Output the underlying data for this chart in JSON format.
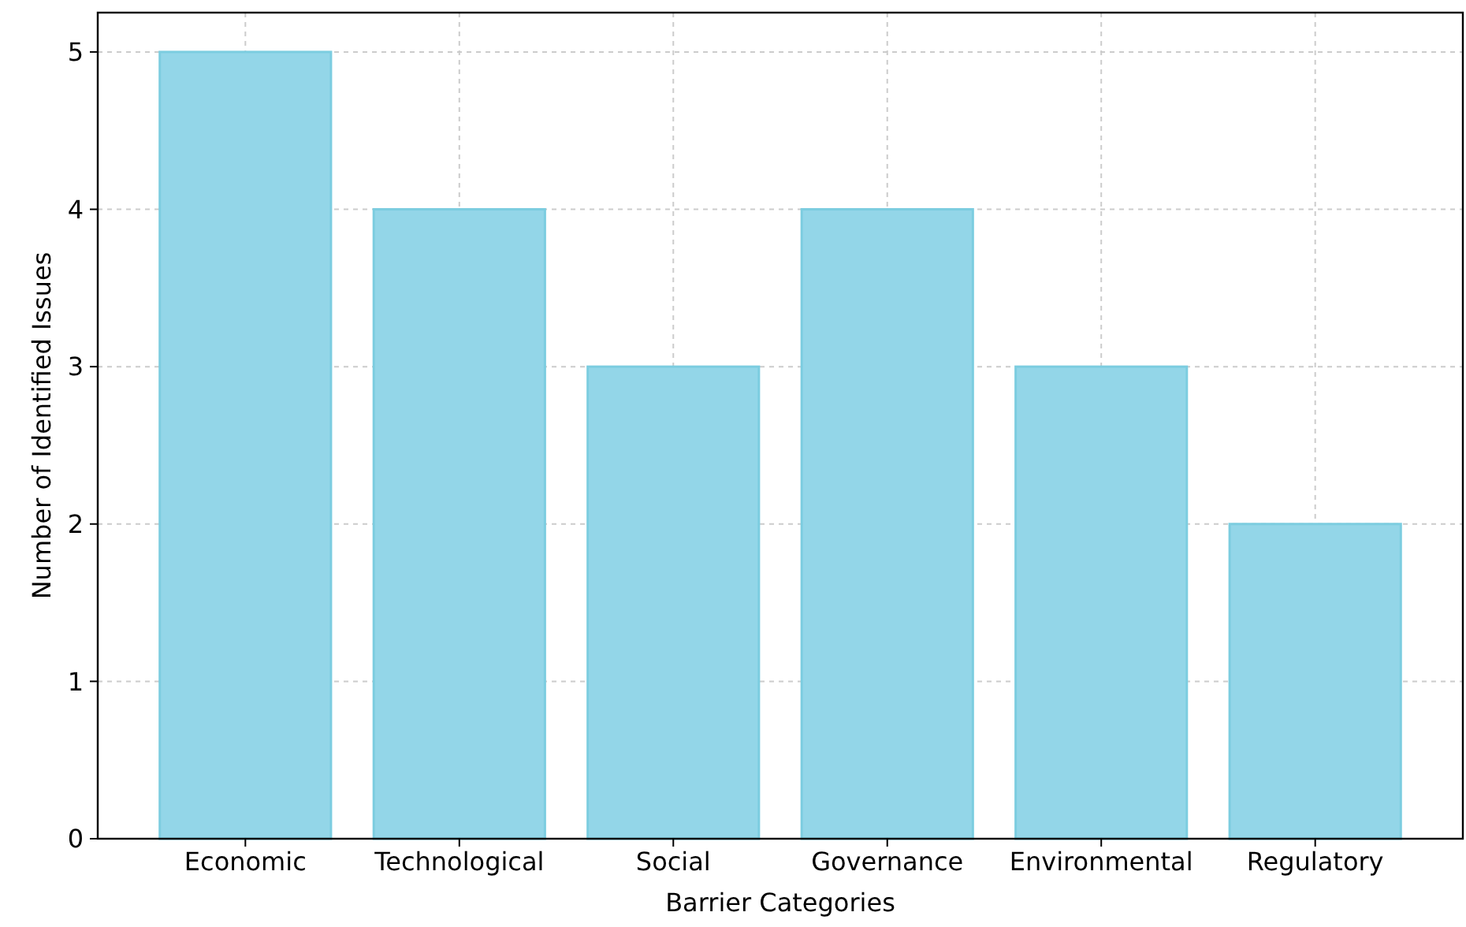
{
  "chart_data": {
    "type": "bar",
    "xlabel": "Barrier Categories",
    "ylabel": "Number of Identified Issues",
    "categories": [
      "Economic",
      "Technological",
      "Social",
      "Governance",
      "Environmental",
      "Regulatory"
    ],
    "values": [
      5,
      4,
      3,
      4,
      3,
      2
    ],
    "color": "#93d6e8",
    "ylim": [
      0,
      5.25
    ],
    "yticks": [
      0,
      1,
      2,
      3,
      4,
      5
    ],
    "grid": true
  }
}
